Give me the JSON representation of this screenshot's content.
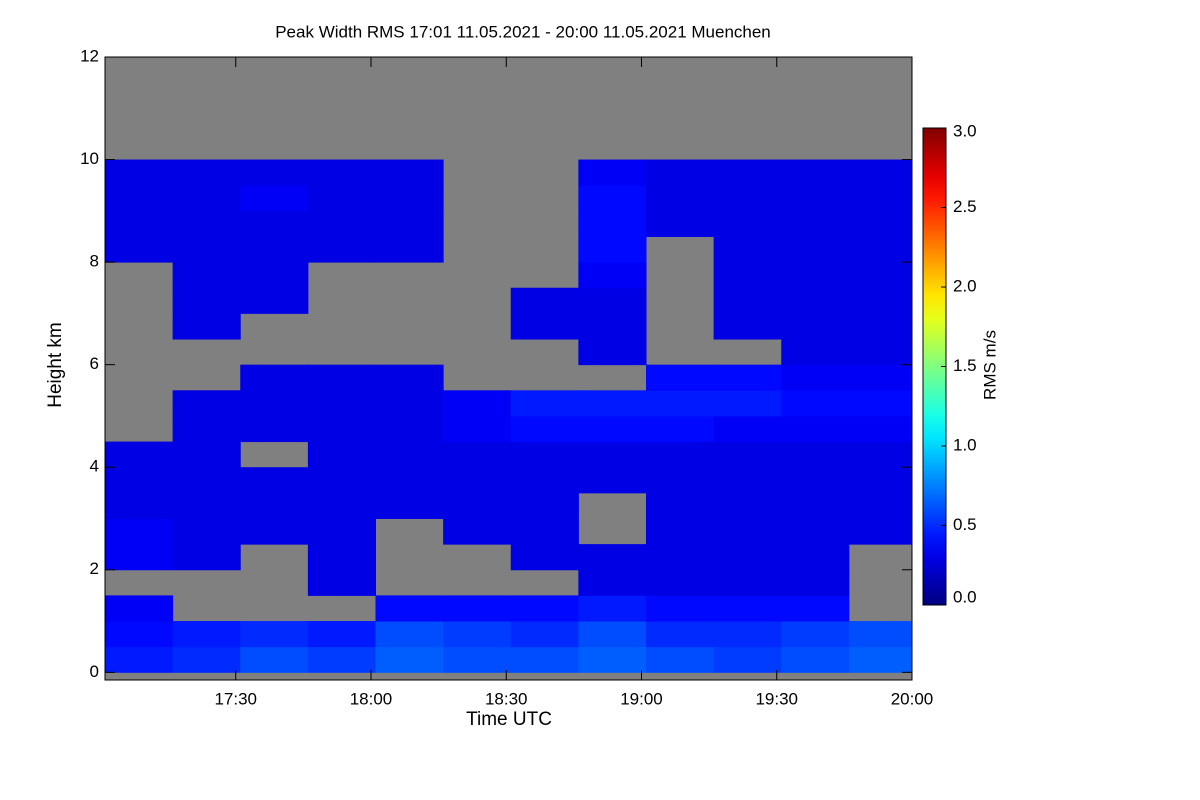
{
  "chart_data": {
    "type": "heatmap",
    "title": "Peak Width RMS   17:01 11.05.2021 - 20:00 11.05.2021 Muenchen",
    "x_label": "Time UTC",
    "y_label": "Height km",
    "colorbar_label": "RMS m/s",
    "colormap": "jet",
    "missing_color": "#808080",
    "xlim": [
      1021,
      1200
    ],
    "xticks": [
      {
        "value": 1050,
        "label": "17:30"
      },
      {
        "value": 1080,
        "label": "18:00"
      },
      {
        "value": 1110,
        "label": "18:30"
      },
      {
        "value": 1140,
        "label": "19:00"
      },
      {
        "value": 1170,
        "label": "19:30"
      },
      {
        "value": 1200,
        "label": "20:00"
      }
    ],
    "ylim": [
      -0.15,
      12
    ],
    "yticks": [
      0,
      2,
      4,
      6,
      8,
      10,
      12
    ],
    "zlim": [
      0,
      3
    ],
    "zticks": [
      {
        "value": 0,
        "label": "0.0"
      },
      {
        "value": 0.5,
        "label": "0.5"
      },
      {
        "value": 1,
        "label": "1.0"
      },
      {
        "value": 1.5,
        "label": "1.5"
      },
      {
        "value": 2,
        "label": "2.0"
      },
      {
        "value": 2.5,
        "label": "2.5"
      },
      {
        "value": 3,
        "label": "3.0"
      }
    ],
    "x": [
      1028.5,
      1043.5,
      1058.5,
      1073.5,
      1088.5,
      1103.5,
      1118.5,
      1133.5,
      1148.5,
      1163.5,
      1178.5,
      1193.5
    ],
    "y": [
      0.25,
      0.75,
      1.25,
      1.75,
      2.25,
      2.75,
      3.25,
      3.75,
      4.25,
      4.75,
      5.25,
      5.75,
      6.25,
      6.75,
      7.25,
      7.75,
      8.25,
      8.75,
      9.25,
      9.75,
      10.25,
      10.75,
      11.25,
      11.75
    ],
    "z": [
      [
        0.45,
        0.5,
        0.6,
        0.55,
        0.65,
        0.6,
        0.6,
        0.65,
        0.6,
        0.55,
        0.6,
        0.65
      ],
      [
        0.4,
        0.45,
        0.5,
        0.45,
        0.6,
        0.55,
        0.5,
        0.6,
        0.5,
        0.5,
        0.55,
        0.6
      ],
      [
        0.35,
        null,
        null,
        null,
        0.4,
        0.4,
        0.4,
        0.45,
        0.4,
        0.4,
        0.4,
        null
      ],
      [
        null,
        null,
        null,
        0.3,
        null,
        null,
        null,
        0.3,
        0.3,
        0.3,
        0.3,
        null
      ],
      [
        0.35,
        0.3,
        null,
        0.3,
        null,
        null,
        0.3,
        0.3,
        0.3,
        0.3,
        0.3,
        null
      ],
      [
        0.35,
        0.3,
        0.3,
        0.3,
        null,
        0.3,
        0.3,
        null,
        0.3,
        0.3,
        0.3,
        0.3
      ],
      [
        0.3,
        0.3,
        0.3,
        0.3,
        0.3,
        0.3,
        0.3,
        null,
        0.3,
        0.3,
        0.3,
        0.3
      ],
      [
        0.3,
        0.3,
        0.3,
        0.3,
        0.3,
        0.3,
        0.3,
        0.3,
        0.3,
        0.3,
        0.3,
        0.3
      ],
      [
        0.3,
        0.3,
        null,
        0.3,
        0.3,
        0.3,
        0.3,
        0.3,
        0.3,
        0.3,
        0.3,
        0.3
      ],
      [
        null,
        0.3,
        0.3,
        0.3,
        0.3,
        0.35,
        0.4,
        0.4,
        0.4,
        0.35,
        0.35,
        0.35
      ],
      [
        null,
        0.3,
        0.3,
        0.3,
        0.3,
        0.35,
        0.45,
        0.45,
        0.45,
        0.45,
        0.4,
        0.4
      ],
      [
        null,
        null,
        0.3,
        0.3,
        0.3,
        null,
        null,
        null,
        0.4,
        0.4,
        0.35,
        0.35
      ],
      [
        null,
        null,
        null,
        null,
        null,
        null,
        null,
        0.3,
        null,
        null,
        0.3,
        0.3
      ],
      [
        null,
        0.3,
        null,
        null,
        null,
        null,
        0.3,
        0.3,
        null,
        0.3,
        0.3,
        0.3
      ],
      [
        null,
        0.3,
        0.3,
        null,
        null,
        null,
        0.3,
        0.3,
        null,
        0.3,
        0.3,
        0.3
      ],
      [
        null,
        0.3,
        0.3,
        null,
        null,
        null,
        null,
        0.35,
        null,
        0.3,
        0.3,
        0.3
      ],
      [
        0.3,
        0.3,
        0.3,
        0.3,
        0.3,
        null,
        null,
        0.4,
        null,
        0.3,
        0.3,
        0.3
      ],
      [
        0.3,
        0.3,
        0.3,
        0.3,
        0.3,
        null,
        null,
        0.4,
        0.3,
        0.3,
        0.3,
        0.3
      ],
      [
        0.3,
        0.3,
        0.35,
        0.3,
        0.3,
        null,
        null,
        0.4,
        0.3,
        0.3,
        0.3,
        0.3
      ],
      [
        0.3,
        0.3,
        0.3,
        0.3,
        0.3,
        null,
        null,
        0.35,
        0.3,
        0.3,
        0.3,
        0.3
      ],
      [
        null,
        null,
        null,
        null,
        null,
        null,
        null,
        null,
        null,
        null,
        null,
        null
      ],
      [
        null,
        null,
        null,
        null,
        null,
        null,
        null,
        null,
        null,
        null,
        null,
        null
      ],
      [
        null,
        null,
        null,
        null,
        null,
        null,
        null,
        null,
        null,
        null,
        null,
        null
      ],
      [
        null,
        null,
        null,
        null,
        null,
        null,
        null,
        null,
        null,
        null,
        null,
        null
      ]
    ]
  }
}
